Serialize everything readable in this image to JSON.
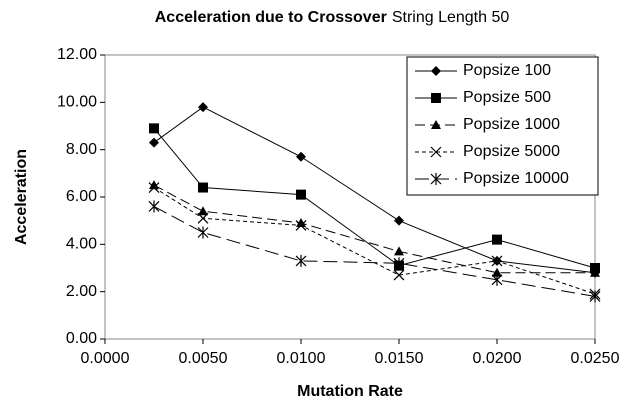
{
  "chart_data": {
    "type": "line",
    "title": "Acceleration due to Crossover",
    "subtitle": "String Length 50",
    "x_label": "Mutation Rate",
    "y_label": "Acceleration",
    "x": [
      0.0025,
      0.005,
      0.01,
      0.015,
      0.02,
      0.025
    ],
    "series": [
      {
        "name": "Popsize 100",
        "color": "#000000",
        "marker": "diamond",
        "dash": "none",
        "values": [
          8.3,
          9.8,
          7.7,
          5.0,
          3.3,
          2.8
        ]
      },
      {
        "name": "Popsize 500",
        "color": "#000000",
        "marker": "square",
        "dash": "none",
        "values": [
          8.9,
          6.4,
          6.1,
          3.1,
          4.2,
          3.0
        ]
      },
      {
        "name": "Popsize 1000",
        "color": "#000000",
        "marker": "triangle",
        "dash": "10,5",
        "values": [
          6.5,
          5.4,
          4.9,
          3.7,
          2.8,
          2.8
        ]
      },
      {
        "name": "Popsize 5000",
        "color": "#000000",
        "marker": "x",
        "dash": "4,3",
        "values": [
          6.4,
          5.1,
          4.8,
          2.7,
          3.3,
          1.9
        ]
      },
      {
        "name": "Popsize 10000",
        "color": "#000000",
        "marker": "star",
        "dash": "14,6",
        "values": [
          5.6,
          4.5,
          3.3,
          3.2,
          2.5,
          1.8
        ]
      }
    ],
    "xlim": [
      0,
      0.025
    ],
    "xticks": [
      {
        "value": 0,
        "label": "0.0000"
      },
      {
        "value": 0.005,
        "label": "0.0050"
      },
      {
        "value": 0.01,
        "label": "0.0100"
      },
      {
        "value": 0.015,
        "label": "0.0150"
      },
      {
        "value": 0.02,
        "label": "0.0200"
      },
      {
        "value": 0.025,
        "label": "0.0250"
      }
    ],
    "ylim": [
      0,
      12
    ],
    "yticks": [
      {
        "value": 0,
        "label": "0.00"
      },
      {
        "value": 2,
        "label": "2.00"
      },
      {
        "value": 4,
        "label": "4.00"
      },
      {
        "value": 6,
        "label": "6.00"
      },
      {
        "value": 8,
        "label": "8.00"
      },
      {
        "value": 10,
        "label": "10.00"
      },
      {
        "value": 12,
        "label": "12.00"
      }
    ],
    "grid": false,
    "legend": "upper right"
  }
}
